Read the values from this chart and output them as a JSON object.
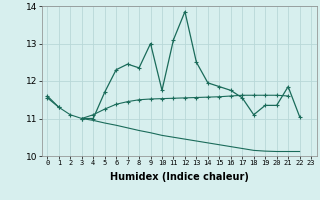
{
  "xlabel": "Humidex (Indice chaleur)",
  "background_color": "#d7efee",
  "grid_color": "#b8d8d8",
  "line_color": "#1a6b5a",
  "x": [
    0,
    1,
    2,
    3,
    4,
    5,
    6,
    7,
    8,
    9,
    10,
    11,
    12,
    13,
    14,
    15,
    16,
    17,
    18,
    19,
    20,
    21,
    22,
    23
  ],
  "y_main": [
    11.6,
    11.3,
    null,
    11.0,
    11.0,
    11.7,
    12.3,
    12.45,
    12.35,
    13.0,
    11.75,
    13.1,
    13.85,
    12.5,
    11.95,
    11.85,
    11.75,
    11.55,
    11.1,
    11.35,
    11.35,
    11.85,
    11.05,
    null
  ],
  "y_mid": [
    11.55,
    11.3,
    11.1,
    11.0,
    11.1,
    11.25,
    11.38,
    11.45,
    11.5,
    11.52,
    11.53,
    11.54,
    11.55,
    11.56,
    11.57,
    11.58,
    11.6,
    11.62,
    11.62,
    11.62,
    11.62,
    11.6,
    null,
    null
  ],
  "y_lower": [
    null,
    null,
    null,
    11.0,
    10.95,
    10.88,
    10.82,
    10.75,
    10.68,
    10.62,
    10.55,
    10.5,
    10.45,
    10.4,
    10.35,
    10.3,
    10.25,
    10.2,
    10.15,
    10.13,
    10.12,
    10.12,
    10.12,
    null
  ],
  "ylim": [
    10.0,
    14.0
  ],
  "yticks": [
    10,
    11,
    12,
    13,
    14
  ],
  "xlim": [
    -0.5,
    23.5
  ],
  "xticks": [
    0,
    1,
    2,
    3,
    4,
    5,
    6,
    7,
    8,
    9,
    10,
    11,
    12,
    13,
    14,
    15,
    16,
    17,
    18,
    19,
    20,
    21,
    22,
    23
  ]
}
